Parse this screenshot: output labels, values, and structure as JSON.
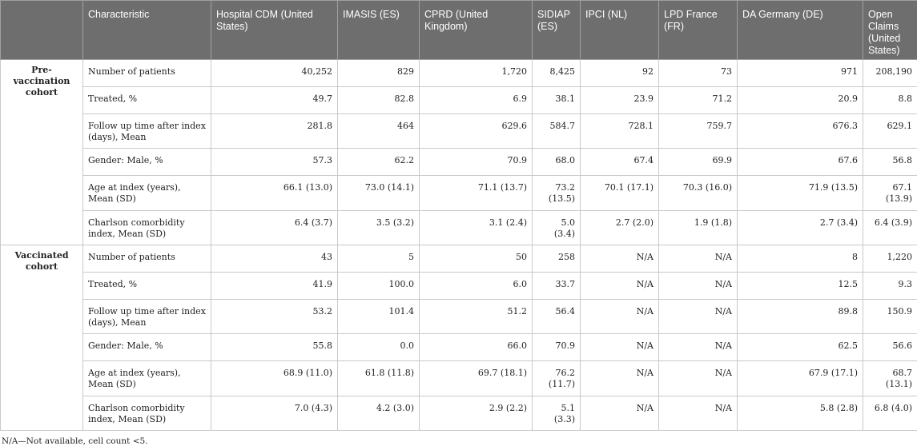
{
  "header": [
    "Characteristic",
    "Hospital CDM (United States)",
    "IMASIS (ES)",
    "CPRD (United Kingdom)",
    "SIDIAP (ES)",
    "IPCI (NL)",
    "LPD France (FR)",
    "DA Germany (DE)",
    "Open Claims (United States)"
  ],
  "groups": [
    {
      "label": "Pre-vaccination cohort",
      "rows": [
        {
          "label": "Number of patients",
          "values": [
            "40,252",
            "829",
            "1,720",
            "8,425",
            "92",
            "73",
            "971",
            "208,190"
          ]
        },
        {
          "label": "Treated, %",
          "values": [
            "49.7",
            "82.8",
            "6.9",
            "38.1",
            "23.9",
            "71.2",
            "20.9",
            "8.8"
          ]
        },
        {
          "label": "Follow up time after index (days), Mean",
          "values": [
            "281.8",
            "464",
            "629.6",
            "584.7",
            "728.1",
            "759.7",
            "676.3",
            "629.1"
          ]
        },
        {
          "label": "Gender: Male, %",
          "values": [
            "57.3",
            "62.2",
            "70.9",
            "68.0",
            "67.4",
            "69.9",
            "67.6",
            "56.8"
          ]
        },
        {
          "label": "Age at index (years), Mean (SD)",
          "values": [
            "66.1 (13.0)",
            "73.0 (14.1)",
            "71.1 (13.7)",
            "73.2 (13.5)",
            "70.1 (17.1)",
            "70.3 (16.0)",
            "71.9 (13.5)",
            "67.1 (13.9)"
          ]
        },
        {
          "label": "Charlson comorbidity index, Mean (SD)",
          "values": [
            "6.4 (3.7)",
            "3.5 (3.2)",
            "3.1 (2.4)",
            "5.0 (3.4)",
            "2.7 (2.0)",
            "1.9 (1.8)",
            "2.7 (3.4)",
            "6.4 (3.9)"
          ]
        }
      ]
    },
    {
      "label": "Vaccinated cohort",
      "rows": [
        {
          "label": "Number of patients",
          "values": [
            "43",
            "5",
            "50",
            "258",
            "N/A",
            "N/A",
            "8",
            "1,220"
          ]
        },
        {
          "label": "Treated, %",
          "values": [
            "41.9",
            "100.0",
            "6.0",
            "33.7",
            "N/A",
            "N/A",
            "12.5",
            "9.3"
          ]
        },
        {
          "label": "Follow up time after index (days), Mean",
          "values": [
            "53.2",
            "101.4",
            "51.2",
            "56.4",
            "N/A",
            "N/A",
            "89.8",
            "150.9"
          ]
        },
        {
          "label": "Gender: Male, %",
          "values": [
            "55.8",
            "0.0",
            "66.0",
            "70.9",
            "N/A",
            "N/A",
            "62.5",
            "56.6"
          ]
        },
        {
          "label": "Age at index (years), Mean (SD)",
          "values": [
            "68.9 (11.0)",
            "61.8 (11.8)",
            "69.7 (18.1)",
            "76.2 (11.7)",
            "N/A",
            "N/A",
            "67.9 (17.1)",
            "68.7 (13.1)"
          ]
        },
        {
          "label": "Charlson comorbidity index, Mean (SD)",
          "values": [
            "7.0 (4.3)",
            "4.2 (3.0)",
            "2.9 (2.2)",
            "5.1 (3.3)",
            "N/A",
            "N/A",
            "5.8 (2.8)",
            "6.8 (4.0)"
          ]
        }
      ]
    }
  ],
  "footnote": "N/A—Not available, cell count <5."
}
